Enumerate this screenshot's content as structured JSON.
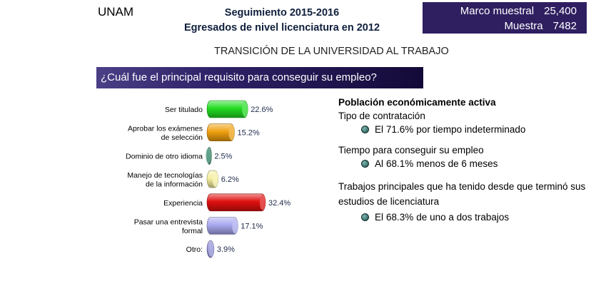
{
  "header": {
    "org": "UNAM",
    "line1": "Seguimiento 2015-2016",
    "line2": "Egresados de nivel licenciatura en 2012"
  },
  "stats": {
    "marco_label": "Marco muestral",
    "marco_value": "25,400",
    "muestra_label": "Muestra",
    "muestra_value": "7482"
  },
  "subtitle": "TRANSICIÓN DE LA UNIVERSIDAD AL TRABAJO",
  "question": "¿Cuál fue el principal requisito para conseguir su empleo?",
  "chart_data": {
    "type": "bar",
    "orientation": "horizontal",
    "categories": [
      [
        "Ser titulado"
      ],
      [
        "Aprobar los exámenes",
        "de selección"
      ],
      [
        "Dominio de otro idioma"
      ],
      [
        "Manejo de tecnologías",
        "de la información"
      ],
      [
        "Experiencia"
      ],
      [
        "Pasar una entrevista",
        "formal"
      ],
      [
        "Otro:"
      ]
    ],
    "values": [
      22.6,
      15.2,
      2.5,
      6.2,
      32.4,
      17.1,
      3.9
    ],
    "labels": [
      "22.6%",
      "15.2%",
      "2.5%",
      "6.2%",
      "32.4%",
      "17.1%",
      "3.9%"
    ],
    "colors": [
      "#22dd22",
      "#f0a010",
      "#2a8060",
      "#f5f0a0",
      "#e01010",
      "#a8a8f0",
      "#9090d8"
    ],
    "xlim": [
      0,
      32.4
    ],
    "grid": false,
    "legend": "none"
  },
  "right": {
    "heading": "Población económicamente activa",
    "sections": [
      {
        "title": "Tipo de contratación",
        "prefix": "El",
        "pct": "71.6%",
        "text": "por tiempo indeterminado"
      },
      {
        "title": "Tiempo para conseguir su empleo",
        "prefix": "Al",
        "pct": "68.1%",
        "text": "menos de 6 meses"
      },
      {
        "title": "Trabajos principales que ha tenido desde que terminó sus estudios de licenciatura",
        "prefix": "El",
        "pct": "68.3%",
        "text": "de uno a dos trabajos"
      }
    ]
  }
}
